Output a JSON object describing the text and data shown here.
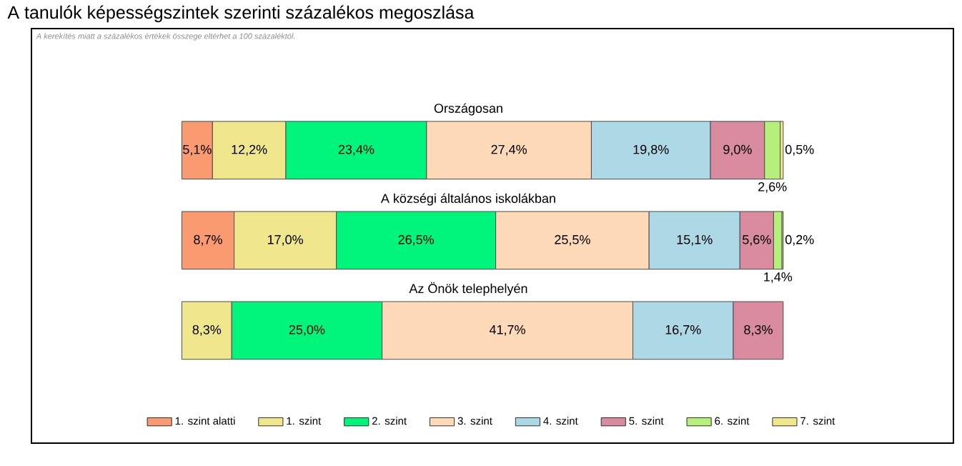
{
  "chart_data": {
    "type": "bar",
    "orientation": "horizontal",
    "stacked": true,
    "title": "A tanulók képességszintek szerinti százalékos megoszlása",
    "subtitle": "A kerekítés miatt a százalékos értékek összege eltérhet a 100 százaléktól.",
    "categories": [
      "Országosan",
      "A községi általános iskolákban",
      "Az Önök telephelyén"
    ],
    "legend": "bottom",
    "series": [
      {
        "name": "1. szint alatti",
        "color": "#fa9a70",
        "values": [
          5.1,
          8.7,
          null
        ],
        "value_labels": [
          "5,1%",
          "8,7%",
          null
        ]
      },
      {
        "name": "1. szint",
        "color": "#f0e68c",
        "values": [
          12.2,
          17.0,
          8.3
        ],
        "value_labels": [
          "12,2%",
          "17,0%",
          "8,3%"
        ]
      },
      {
        "name": "2. szint",
        "color": "#00f57a",
        "values": [
          23.4,
          26.5,
          25.0
        ],
        "value_labels": [
          "23,4%",
          "26,5%",
          "25,0%"
        ]
      },
      {
        "name": "3. szint",
        "color": "#ffdab9",
        "values": [
          27.4,
          25.5,
          41.7
        ],
        "value_labels": [
          "27,4%",
          "25,5%",
          "41,7%"
        ]
      },
      {
        "name": "4. szint",
        "color": "#add8e6",
        "values": [
          19.8,
          15.1,
          16.7
        ],
        "value_labels": [
          "19,8%",
          "15,1%",
          "16,7%"
        ]
      },
      {
        "name": "5. szint",
        "color": "#d98ca0",
        "values": [
          9.0,
          5.6,
          8.3
        ],
        "value_labels": [
          "9,0%",
          "5,6%",
          "8,3%"
        ]
      },
      {
        "name": "6. szint",
        "color": "#b4f07a",
        "values": [
          2.6,
          1.4,
          null
        ],
        "value_labels": [
          "2,6%",
          "1,4%",
          null
        ]
      },
      {
        "name": "7. szint",
        "color": "#f0e68c",
        "values": [
          0.5,
          0.2,
          null
        ],
        "value_labels": [
          "0,5%",
          "0,2%",
          null
        ]
      }
    ]
  }
}
